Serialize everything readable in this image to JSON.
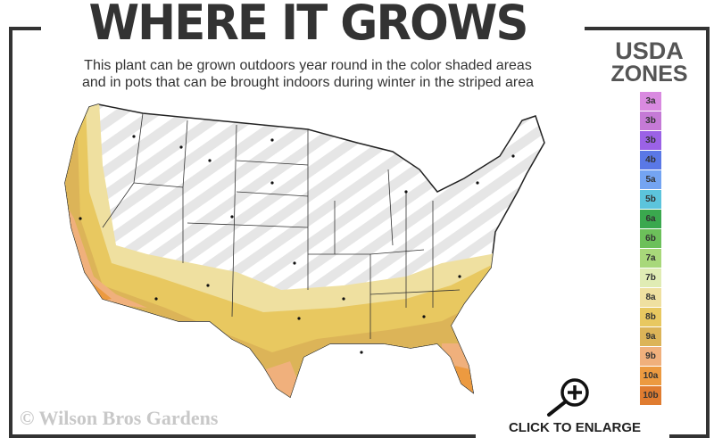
{
  "header": {
    "title": "WHERE IT GROWS",
    "subtitle_line1": "This plant can be grown outdoors year round in the color shaded areas",
    "subtitle_line2": "and in pots that can be brought indoors during winter in the striped area"
  },
  "legend": {
    "title_line1": "USDA",
    "title_line2": "ZONES",
    "zones": [
      {
        "label": "3a",
        "color": "#d98ae0"
      },
      {
        "label": "3b",
        "color": "#c57ad6"
      },
      {
        "label": "3b",
        "color": "#9b62e6"
      },
      {
        "label": "4b",
        "color": "#5a78e6"
      },
      {
        "label": "5a",
        "color": "#74a4f2"
      },
      {
        "label": "5b",
        "color": "#5cc4dc"
      },
      {
        "label": "6a",
        "color": "#3aa84e"
      },
      {
        "label": "6b",
        "color": "#6cc05a"
      },
      {
        "label": "7a",
        "color": "#a8d87a"
      },
      {
        "label": "7b",
        "color": "#e0ecb4"
      },
      {
        "label": "8a",
        "color": "#efe0a0"
      },
      {
        "label": "8b",
        "color": "#e8c860"
      },
      {
        "label": "9a",
        "color": "#dcb458"
      },
      {
        "label": "9b",
        "color": "#f0b07c"
      },
      {
        "label": "10a",
        "color": "#ec9a40"
      },
      {
        "label": "10b",
        "color": "#e07c30"
      }
    ]
  },
  "footer": {
    "copyright": "© Wilson Bros Gardens",
    "enlarge_label": "CLICK TO ENLARGE"
  },
  "map": {
    "icon": "us-hardiness-zone-map",
    "grown_zones": [
      "8a",
      "8b",
      "9a",
      "9b",
      "10a",
      "10b"
    ],
    "striped_meaning": "pots indoors in winter"
  }
}
